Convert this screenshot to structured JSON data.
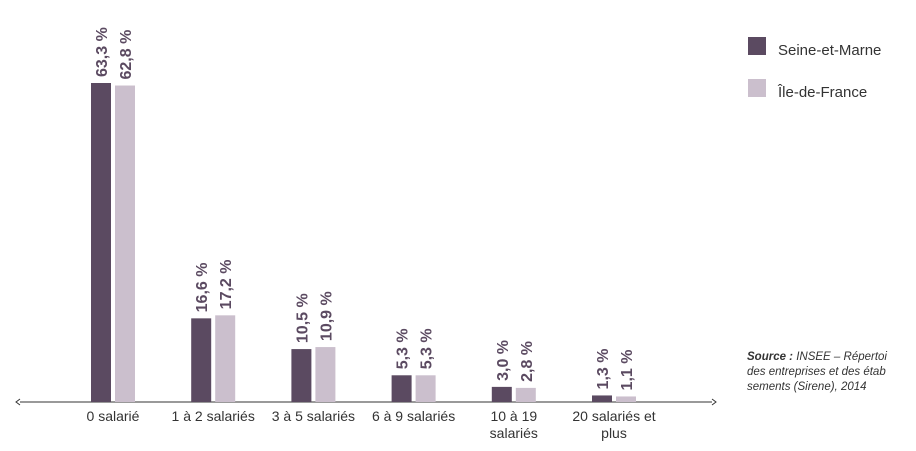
{
  "chart_data": {
    "type": "bar",
    "categories": [
      "0 salarié",
      "1 à 2 salariés",
      "3 à 5 salariés",
      "6 à 9 salariés",
      "10 à 19 salariés",
      "20 salariés et plus"
    ],
    "series": [
      {
        "name": "Seine-et-Marne",
        "color": "#5b4a61",
        "values": [
          63.3,
          16.6,
          10.5,
          5.3,
          3.0,
          1.3
        ],
        "value_labels": [
          "63,3 %",
          "16,6 %",
          "10,5 %",
          "5,3 %",
          "3,0 %",
          "1,3 %"
        ]
      },
      {
        "name": "Île-de-France",
        "color": "#cbbfcd",
        "values": [
          62.8,
          17.2,
          10.9,
          5.3,
          2.8,
          1.1
        ],
        "value_labels": [
          "62,8 %",
          "17,2 %",
          "10,9 %",
          "5,3 %",
          "2,8 %",
          "1,1 %"
        ]
      }
    ],
    "source": {
      "label": "Source :",
      "lines": [
        " INSEE – Répertoi",
        "des entreprises et des étab",
        "sements (Sirene), 2014"
      ]
    }
  }
}
